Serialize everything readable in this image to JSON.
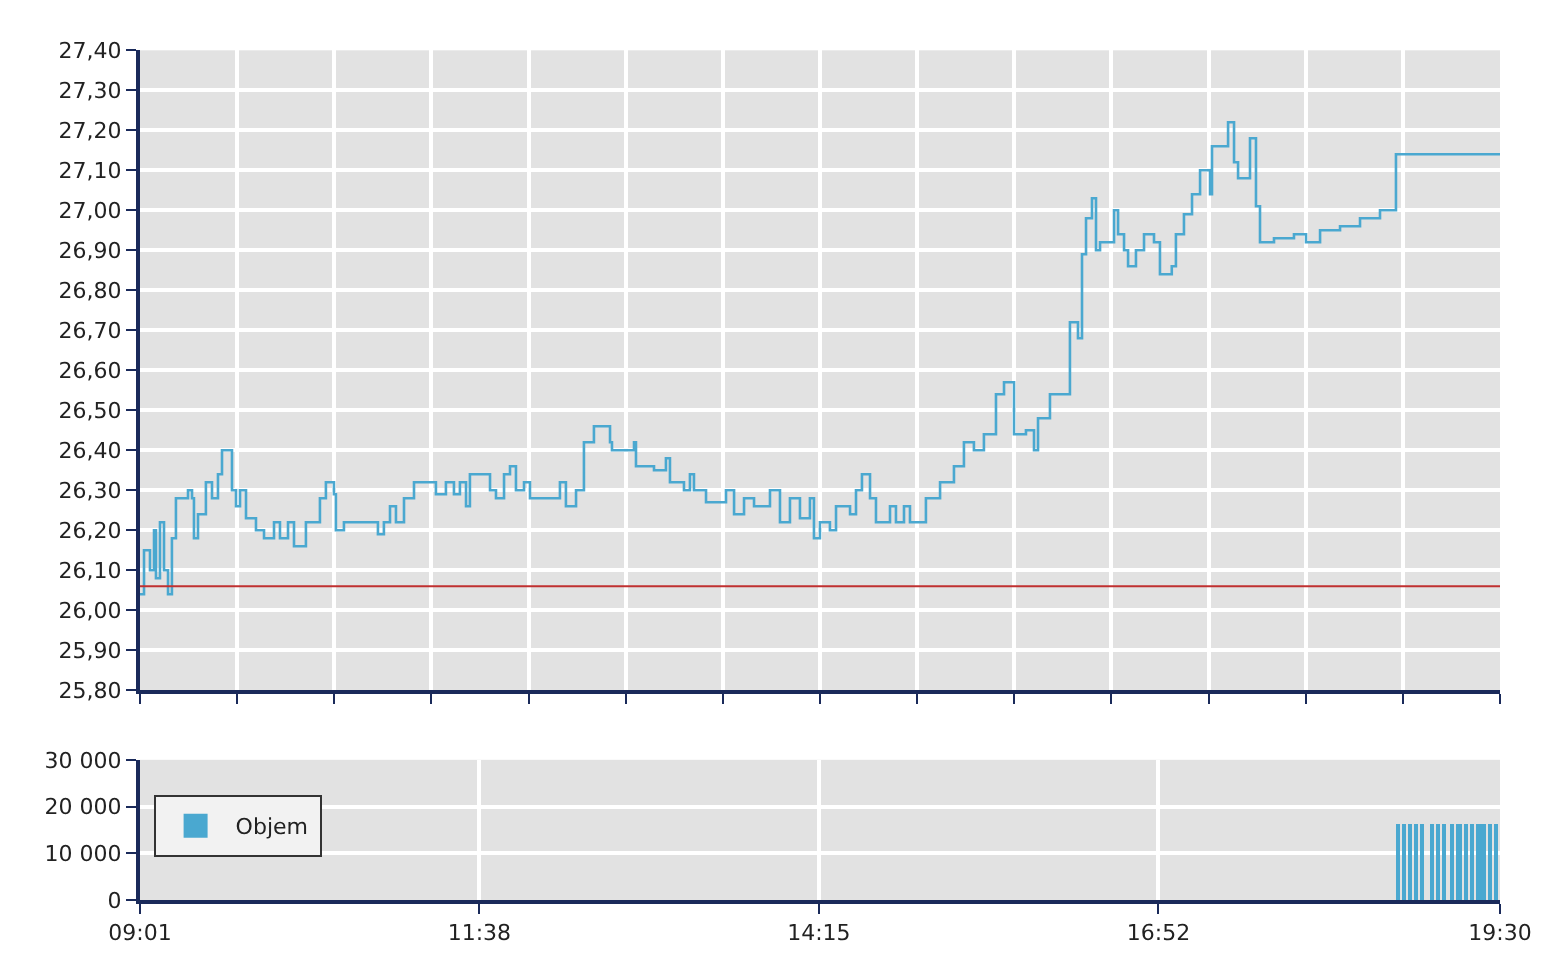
{
  "chart_data": [
    {
      "type": "step",
      "color": "#4aa8d0",
      "grid": true,
      "legend": false,
      "tick_labels": "y",
      "x": [
        9.017,
        9.048,
        9.094,
        9.125,
        9.14,
        9.171,
        9.202,
        9.233,
        9.263,
        9.294,
        9.387,
        9.418,
        9.433,
        9.464,
        9.525,
        9.572,
        9.618,
        9.649,
        9.71,
        9.726,
        9.757,
        9.788,
        9.834,
        9.911,
        9.973,
        10.05,
        10.096,
        10.158,
        10.204,
        10.296,
        10.404,
        10.45,
        10.512,
        10.527,
        10.589,
        10.836,
        10.851,
        10.897,
        10.944,
        10.99,
        11.052,
        11.129,
        11.252,
        11.298,
        11.375,
        11.437,
        11.483,
        11.53,
        11.56,
        11.668,
        11.715,
        11.761,
        11.823,
        11.869,
        11.915,
        11.977,
        12.023,
        12.239,
        12.254,
        12.3,
        12.378,
        12.439,
        12.516,
        12.593,
        12.64,
        12.655,
        12.825,
        12.84,
        12.979,
        13.071,
        13.102,
        13.21,
        13.256,
        13.287,
        13.38,
        13.534,
        13.596,
        13.673,
        13.75,
        13.873,
        13.95,
        14.027,
        14.104,
        14.181,
        14.212,
        14.258,
        14.335,
        14.382,
        14.49,
        14.536,
        14.582,
        14.644,
        14.69,
        14.798,
        14.844,
        14.906,
        14.952,
        15.029,
        15.075,
        15.184,
        15.291,
        15.368,
        15.445,
        15.522,
        15.615,
        15.677,
        15.754,
        15.846,
        15.908,
        15.939,
        16.031,
        16.139,
        16.185,
        16.247,
        16.278,
        16.309,
        16.355,
        16.386,
        16.417,
        16.494,
        16.525,
        16.556,
        16.602,
        16.633,
        16.694,
        16.756,
        16.833,
        16.879,
        16.97,
        17.002,
        17.064,
        17.126,
        17.188,
        17.265,
        17.28,
        17.388,
        17.404,
        17.45,
        17.481,
        17.573,
        17.619,
        17.65,
        17.758,
        17.912,
        18.005,
        18.113,
        18.267,
        18.421,
        18.575,
        18.683,
        18.698,
        19.5
      ],
      "values": [
        26.04,
        26.15,
        26.1,
        26.2,
        26.08,
        26.22,
        26.1,
        26.04,
        26.18,
        26.28,
        26.3,
        26.28,
        26.18,
        26.24,
        26.32,
        26.28,
        26.34,
        26.4,
        26.4,
        26.3,
        26.26,
        26.3,
        26.23,
        26.2,
        26.18,
        26.22,
        26.18,
        26.22,
        26.16,
        26.22,
        26.28,
        26.32,
        26.29,
        26.2,
        26.22,
        26.22,
        26.19,
        26.22,
        26.26,
        26.22,
        26.28,
        26.32,
        26.32,
        26.29,
        26.32,
        26.29,
        26.32,
        26.26,
        26.34,
        26.34,
        26.3,
        26.28,
        26.34,
        26.36,
        26.3,
        26.32,
        26.28,
        26.28,
        26.32,
        26.26,
        26.3,
        26.42,
        26.46,
        26.46,
        26.42,
        26.4,
        26.42,
        26.36,
        26.35,
        26.38,
        26.32,
        26.3,
        26.34,
        26.3,
        26.27,
        26.3,
        26.24,
        26.28,
        26.26,
        26.3,
        26.22,
        26.28,
        26.23,
        26.28,
        26.18,
        26.22,
        26.2,
        26.26,
        26.24,
        26.3,
        26.34,
        26.28,
        26.22,
        26.26,
        26.22,
        26.26,
        26.22,
        26.22,
        26.28,
        26.32,
        26.36,
        26.42,
        26.4,
        26.44,
        26.54,
        26.57,
        26.44,
        26.45,
        26.4,
        26.48,
        26.54,
        26.54,
        26.72,
        26.68,
        26.89,
        26.98,
        27.03,
        26.9,
        26.92,
        26.92,
        27.0,
        26.94,
        26.9,
        26.86,
        26.9,
        26.94,
        26.92,
        26.84,
        26.86,
        26.94,
        26.99,
        27.04,
        27.1,
        27.04,
        27.16,
        27.16,
        27.22,
        27.12,
        27.08,
        27.18,
        27.01,
        26.92,
        26.93,
        26.94,
        26.92,
        26.95,
        26.96,
        26.98,
        27.0,
        27.0,
        27.14,
        27.14
      ],
      "xlim": [
        9.017,
        19.5
      ],
      "xticks": [
        {
          "value": 9.017,
          "label": null
        },
        {
          "value": 9.765,
          "label": null
        },
        {
          "value": 10.514,
          "label": null
        },
        {
          "value": 11.263,
          "label": null
        },
        {
          "value": 12.012,
          "label": null
        },
        {
          "value": 12.761,
          "label": null
        },
        {
          "value": 13.51,
          "label": null
        },
        {
          "value": 14.258,
          "label": null
        },
        {
          "value": 15.007,
          "label": null
        },
        {
          "value": 15.756,
          "label": null
        },
        {
          "value": 16.505,
          "label": null
        },
        {
          "value": 17.254,
          "label": null
        },
        {
          "value": 18.003,
          "label": null
        },
        {
          "value": 18.751,
          "label": null
        },
        {
          "value": 19.5,
          "label": null
        }
      ],
      "ylim": [
        25.8,
        27.4
      ],
      "yticks": [
        {
          "value": 25.8,
          "label": "25,80"
        },
        {
          "value": 25.9,
          "label": "25,90"
        },
        {
          "value": 26.0,
          "label": "26,00"
        },
        {
          "value": 26.1,
          "label": "26,10"
        },
        {
          "value": 26.2,
          "label": "26,20"
        },
        {
          "value": 26.3,
          "label": "26,30"
        },
        {
          "value": 26.4,
          "label": "26,40"
        },
        {
          "value": 26.5,
          "label": "26,50"
        },
        {
          "value": 26.6,
          "label": "26,60"
        },
        {
          "value": 26.7,
          "label": "26,70"
        },
        {
          "value": 26.8,
          "label": "26,80"
        },
        {
          "value": 26.9,
          "label": "26,90"
        },
        {
          "value": 27.0,
          "label": "27,00"
        },
        {
          "value": 27.1,
          "label": "27,10"
        },
        {
          "value": 27.2,
          "label": "27,20"
        },
        {
          "value": 27.3,
          "label": "27,30"
        },
        {
          "value": 27.4,
          "label": "27,40"
        }
      ],
      "ref_lines": [
        {
          "axis": "y",
          "value": 26.06,
          "color": "#c03030"
        }
      ]
    },
    {
      "type": "bar",
      "grid": true,
      "legend": "top left",
      "x": [
        18.714,
        18.76,
        18.806,
        18.853,
        18.899,
        18.976,
        19.022,
        19.068,
        19.13,
        19.191,
        19.238,
        19.284,
        19.33,
        19.376,
        19.423,
        19.469
      ],
      "series": [
        {
          "name": "Objem",
          "color": "#4aa8d0",
          "values": [
            16300,
            16300,
            16300,
            16300,
            16300,
            16300,
            16300,
            16300,
            16300,
            16300,
            16300,
            16300,
            16300,
            16300,
            16300,
            16300
          ]
        }
      ],
      "xlim": [
        9.017,
        19.5
      ],
      "xticks": [
        {
          "value": 9.017,
          "label": "09:01"
        },
        {
          "value": 11.633,
          "label": "11:38"
        },
        {
          "value": 14.25,
          "label": "14:15"
        },
        {
          "value": 16.867,
          "label": "16:52"
        },
        {
          "value": 19.5,
          "label": "19:30"
        }
      ],
      "ylim": [
        0,
        30000
      ],
      "yticks": [
        0,
        {
          "value": 10000,
          "label": "10 000"
        },
        {
          "value": 20000,
          "label": "20 000"
        },
        {
          "value": 30000,
          "label": "30 000"
        }
      ]
    }
  ]
}
